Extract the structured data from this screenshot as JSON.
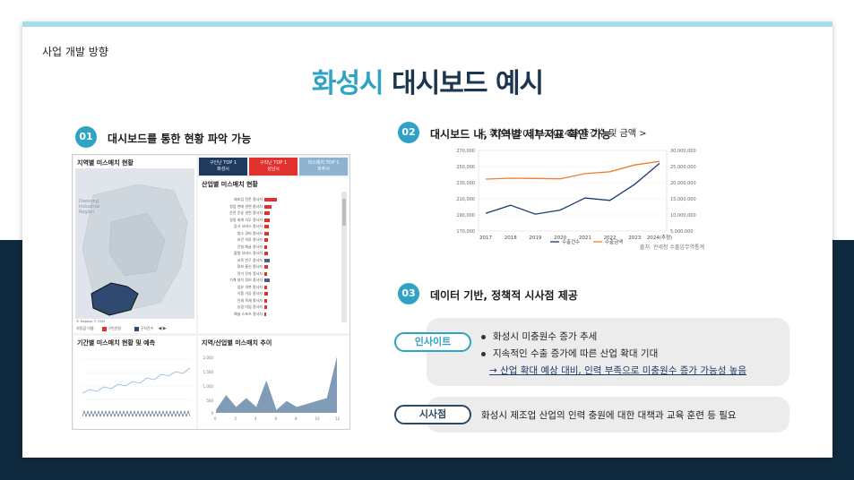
{
  "header": {
    "section_label": "사업 개발 방향",
    "title_accent": "화성시",
    "title_main": "대시보드 예시"
  },
  "section1": {
    "number": "01",
    "heading": "대시보드를 통한 현황 파악 가능",
    "dashboard": {
      "map_title": "지역별 미스매치 현황",
      "map_region_label": "Daesong Industrial Region",
      "map_credit": "© Mapbox © OSM",
      "map_legend_label": "지정값 이름",
      "map_legend_items": [
        "구인인원",
        "구직건수"
      ],
      "top_boxes": [
        {
          "label": "구인난 TOP 1",
          "sub": "화성시",
          "color": "#1e3a5f"
        },
        {
          "label": "구직난 TOP 1",
          "sub": "성남시",
          "color": "#e0312f"
        },
        {
          "label": "미스매치 TOP 1",
          "sub": "파주시",
          "color": "#8fb2d0"
        }
      ],
      "industry_title": "산업별 미스매치 현황",
      "industry_bars": [
        {
          "label": "제조업 전문 종사자",
          "value": 0.9,
          "color": "#e0312f"
        },
        {
          "label": "영업 판매 관련 종사자",
          "value": 0.5,
          "color": "#e0312f"
        },
        {
          "label": "운전 운송 관련 종사자",
          "value": 0.4,
          "color": "#e0312f"
        },
        {
          "label": "경영 회계 사무 종사자",
          "value": 0.35,
          "color": "#e0312f"
        },
        {
          "label": "음식 서비스 종사자",
          "value": 0.3,
          "color": "#e0312f"
        },
        {
          "label": "청소 경비 종사자",
          "value": 0.3,
          "color": "#e0312f"
        },
        {
          "label": "보건 의료 종사자",
          "value": 0.25,
          "color": "#e0312f"
        },
        {
          "label": "건설 채굴 종사자",
          "value": 0.2,
          "color": "#e0312f"
        },
        {
          "label": "돌봄 서비스 종사자",
          "value": 0.25,
          "color": "#e0312f"
        },
        {
          "label": "교육 연구 종사자",
          "value": 0.35,
          "color": "#4a5d8a"
        },
        {
          "label": "정보 통신 종사자",
          "value": 0.25,
          "color": "#e0312f"
        },
        {
          "label": "전기 전자 종사자",
          "value": 0.2,
          "color": "#e0312f"
        },
        {
          "label": "기계 설치 정비 종사자",
          "value": 0.35,
          "color": "#4a5d8a"
        },
        {
          "label": "섬유 의복 종사자",
          "value": 0.2,
          "color": "#e0312f"
        },
        {
          "label": "식품 가공 종사자",
          "value": 0.25,
          "color": "#e0312f"
        },
        {
          "label": "인쇄 목재 종사자",
          "value": 0.2,
          "color": "#e0312f"
        },
        {
          "label": "농림 어업 종사자",
          "value": 0.2,
          "color": "#e0312f"
        },
        {
          "label": "예술 스포츠 종사자",
          "value": 0.15,
          "color": "#e0312f"
        }
      ],
      "trend_title": "기간별 미스매치 현황 및 예측",
      "area_title": "지역/산업별 미스매치 추이",
      "area_yticks": [
        "2,000",
        "1,500",
        "1,000",
        "500",
        "0"
      ],
      "area_xticks": [
        "0",
        "2",
        "4",
        "6",
        "8",
        "10",
        "12"
      ],
      "area_values": [
        0.05,
        0.3,
        0.1,
        0.25,
        0.1,
        0.55,
        0.05,
        0.2,
        0.1,
        0.15,
        0.2,
        0.25,
        0.95
      ]
    }
  },
  "section2": {
    "number": "02",
    "heading": "대시보드 내, 지역별 세부지표 확인 가능",
    "chart_title": "< 화성시 2017~2024 수출건수 및 금액 >",
    "chart_source": "출처: 관세청 수출입무역통계",
    "chart_data": {
      "type": "line",
      "x": [
        "2017",
        "2018",
        "2019",
        "2020",
        "2021",
        "2022",
        "2023",
        "2024(추정)"
      ],
      "series": [
        {
          "name": "수출건수",
          "axis": "left",
          "color": "#1e3a6e",
          "values": [
            192000,
            202000,
            191000,
            196000,
            211000,
            208000,
            228000,
            254000
          ]
        },
        {
          "name": "수출금액",
          "axis": "right",
          "color": "#f07d2b",
          "values": [
            21100000,
            21400000,
            21300000,
            21200000,
            22800000,
            23400000,
            25500000,
            26600000
          ]
        }
      ],
      "yticks_left": [
        "270,000",
        "250,000",
        "230,000",
        "210,000",
        "190,000",
        "170,000"
      ],
      "yticks_right": [
        "30,000,000",
        "25,000,000",
        "20,000,000",
        "15,000,000",
        "10,000,000",
        "5,000,000"
      ],
      "ylim_left": [
        170000,
        270000
      ],
      "ylim_right": [
        5000000,
        30000000
      ],
      "legend_position": "bottom"
    }
  },
  "section3": {
    "number": "03",
    "heading": "데이터 기반, 정책적 시사점 제공",
    "insight_tag": "인사이트",
    "insight_bullets": [
      "화성시 미충원수 증가 추세",
      "지속적인 수출 증가에 따른 산업 확대 기대"
    ],
    "insight_arrow": "→ 산업 확대 예상 대비, 인력 부족으로 미충원수 증가 가능성 높음",
    "implication_tag": "시사점",
    "implication_text": "화성시 제조업 산업의 인력 충원에 대한 대책과 교육 훈련 등 필요"
  },
  "colors": {
    "accent": "#2ea3c5",
    "navy": "#1d3650",
    "tag_insight": "#2ea3c5",
    "tag_implication": "#2a4a66"
  }
}
